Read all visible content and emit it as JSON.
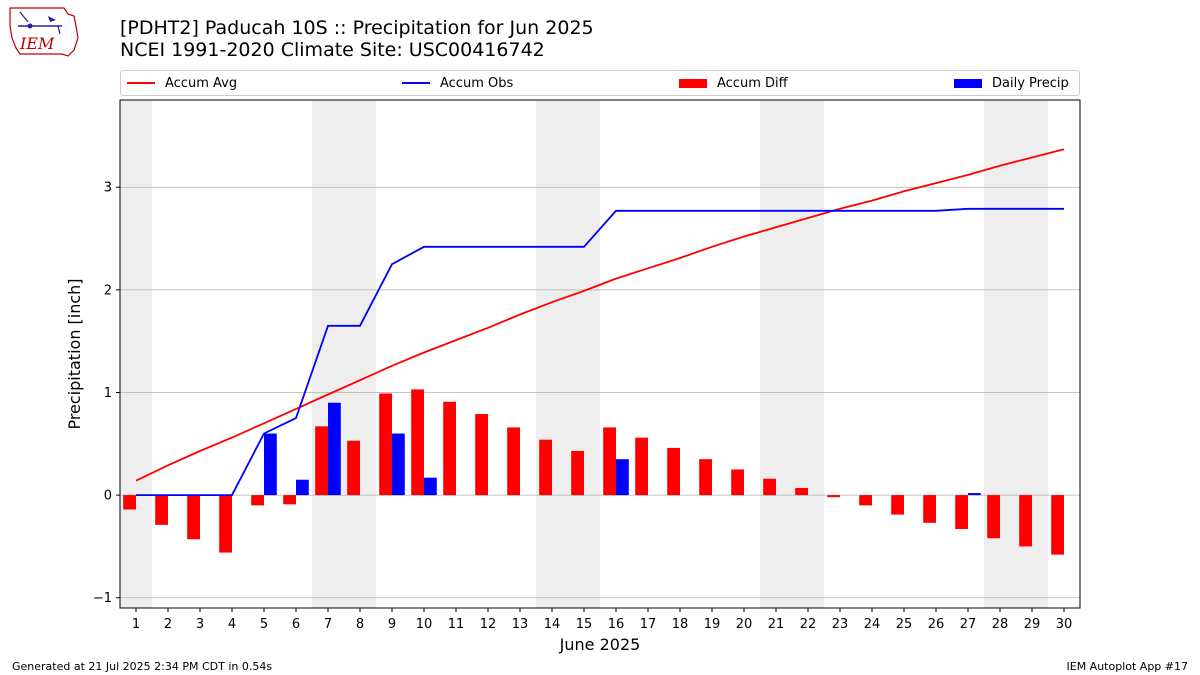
{
  "header": {
    "title_line1": "[PDHT2] Paducah 10S :: Precipitation for Jun 2025",
    "title_line2": "NCEI 1991-2020 Climate Site: USC00416742"
  },
  "logo": {
    "text": "IEM"
  },
  "legend": {
    "accum_avg": "Accum Avg",
    "accum_obs": "Accum Obs",
    "accum_diff": "Accum Diff",
    "daily_precip": "Daily Precip"
  },
  "footer": {
    "left": "Generated at 21 Jul 2025 2:34 PM CDT in 0.54s",
    "right": "IEM Autoplot App #17"
  },
  "colors": {
    "accum_avg": "#ff0000",
    "accum_obs": "#0000ff",
    "accum_diff": "#ff0000",
    "daily_precip": "#0000ff",
    "weekend_shade": "#eeeeee",
    "grid": "#b0b0b0"
  },
  "chart_data": {
    "type": "bar",
    "xlabel": "June 2025",
    "ylabel": "Precipitation [inch]",
    "ylim": [
      -1.1,
      3.85
    ],
    "yticks": [
      -1,
      0,
      1,
      2,
      3
    ],
    "xlim": [
      0.5,
      30.5
    ],
    "grid": "horizontal",
    "legend_placement": "top",
    "days": [
      1,
      2,
      3,
      4,
      5,
      6,
      7,
      8,
      9,
      10,
      11,
      12,
      13,
      14,
      15,
      16,
      17,
      18,
      19,
      20,
      21,
      22,
      23,
      24,
      25,
      26,
      27,
      28,
      29,
      30
    ],
    "weekend_shading": [
      [
        0.5,
        1.5
      ],
      [
        6.5,
        8.5
      ],
      [
        13.5,
        15.5
      ],
      [
        20.5,
        22.5
      ],
      [
        27.5,
        29.5
      ]
    ],
    "series": [
      {
        "name": "Accum Avg",
        "kind": "line",
        "values": [
          0.14,
          0.29,
          0.43,
          0.56,
          0.7,
          0.84,
          0.98,
          1.12,
          1.26,
          1.39,
          1.51,
          1.63,
          1.76,
          1.88,
          1.99,
          2.11,
          2.21,
          2.31,
          2.42,
          2.52,
          2.61,
          2.7,
          2.79,
          2.87,
          2.96,
          3.04,
          3.12,
          3.21,
          3.29,
          3.37
        ]
      },
      {
        "name": "Accum Obs",
        "kind": "line",
        "values": [
          0,
          0,
          0,
          0,
          0.6,
          0.75,
          1.65,
          1.65,
          2.25,
          2.42,
          2.42,
          2.42,
          2.42,
          2.42,
          2.42,
          2.77,
          2.77,
          2.77,
          2.77,
          2.77,
          2.77,
          2.77,
          2.77,
          2.77,
          2.77,
          2.77,
          2.79,
          2.79,
          2.79,
          2.79
        ]
      },
      {
        "name": "Accum Diff",
        "kind": "bar",
        "values": [
          -0.14,
          -0.29,
          -0.43,
          -0.56,
          -0.1,
          -0.09,
          0.67,
          0.53,
          0.99,
          1.03,
          0.91,
          0.79,
          0.66,
          0.54,
          0.43,
          0.66,
          0.56,
          0.46,
          0.35,
          0.25,
          0.16,
          0.07,
          -0.02,
          -0.1,
          -0.19,
          -0.27,
          -0.33,
          -0.42,
          -0.5,
          -0.58
        ]
      },
      {
        "name": "Daily Precip",
        "kind": "bar",
        "values": [
          0,
          0,
          0,
          0,
          0.6,
          0.15,
          0.9,
          0,
          0.6,
          0.17,
          0,
          0,
          0,
          0,
          0,
          0.35,
          0,
          0,
          0,
          0,
          0,
          0,
          0,
          0,
          0,
          0,
          0.02,
          0,
          0,
          0
        ]
      }
    ]
  }
}
